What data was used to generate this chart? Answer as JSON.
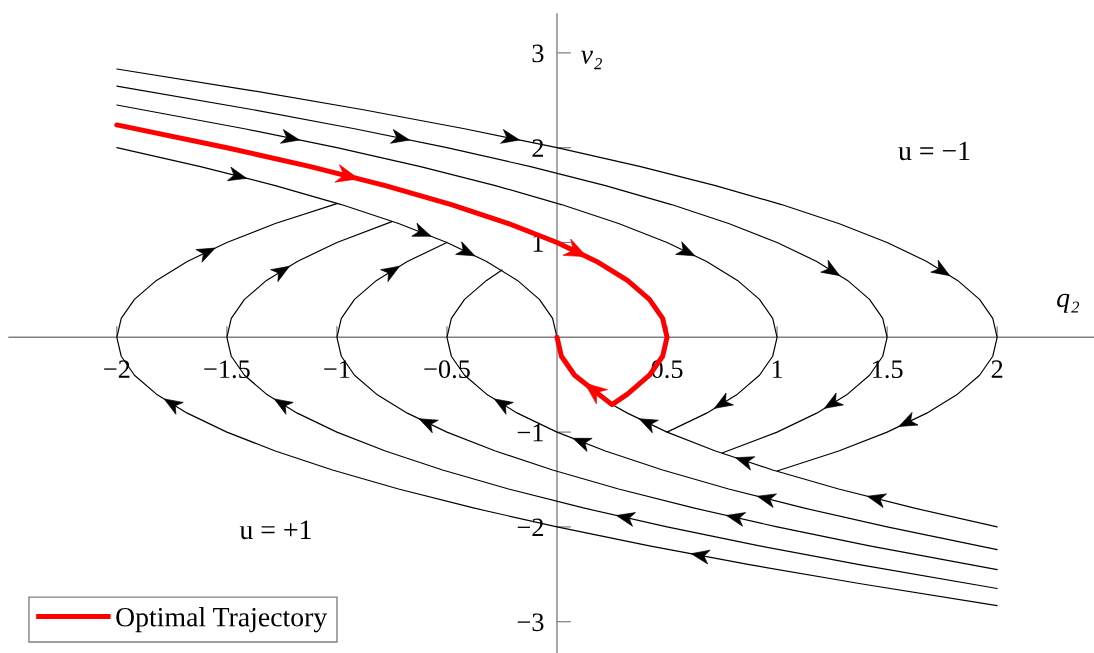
{
  "chart_data": {
    "type": "line",
    "xlabel": "q₂",
    "ylabel": "v₂",
    "xlim": [
      -2.49,
      2.44
    ],
    "ylim": [
      -3.33,
      3.41
    ],
    "xticks": [
      {
        "value": -2,
        "label": "−2"
      },
      {
        "value": -1.5,
        "label": "−1.5"
      },
      {
        "value": -1,
        "label": "−1"
      },
      {
        "value": -0.5,
        "label": "−0.5"
      },
      0.5,
      1,
      1.5,
      2
    ],
    "yticks": [
      {
        "value": -3,
        "label": "−3"
      },
      {
        "value": -2,
        "label": "−2"
      },
      {
        "value": -1,
        "label": "−1"
      },
      1,
      2,
      3
    ],
    "grid": false,
    "legend": "bottom left",
    "line_style": "solid",
    "annotations": [
      "u = −1",
      "u = +1"
    ],
    "series": [
      {
        "color": "#000000",
        "x": [
          -2.0,
          -1.38,
          -0.88,
          -0.42,
          0.0,
          0.38,
          0.72,
          1.02,
          1.28,
          1.5,
          1.68,
          1.82,
          1.92,
          1.98,
          2.0,
          1.98,
          1.92,
          1.82,
          1.68,
          1.5,
          1.28,
          1.0
        ],
        "values": [
          2.83,
          2.6,
          2.4,
          2.2,
          2.0,
          1.8,
          1.6,
          1.4,
          1.2,
          1.0,
          0.8,
          0.6,
          0.4,
          0.2,
          0,
          -0.2,
          -0.4,
          -0.6,
          -0.8,
          -1.0,
          -1.2,
          -1.41
        ]
      },
      {
        "color": "#000000",
        "x": [
          -2.0,
          -1.38,
          -0.92,
          -0.5,
          -0.12,
          0.22,
          0.52,
          0.78,
          1.0,
          1.18,
          1.32,
          1.42,
          1.48,
          1.5,
          1.48,
          1.42,
          1.32,
          1.18,
          1.0,
          0.75
        ],
        "values": [
          2.65,
          2.4,
          2.2,
          2.0,
          1.8,
          1.6,
          1.4,
          1.2,
          1.0,
          0.8,
          0.6,
          0.4,
          0.2,
          0,
          -0.2,
          -0.4,
          -0.6,
          -0.8,
          -1.0,
          -1.22
        ]
      },
      {
        "color": "#000000",
        "x": [
          -2.0,
          -1.42,
          -1.0,
          -0.62,
          -0.28,
          0.02,
          0.28,
          0.5,
          0.68,
          0.82,
          0.92,
          0.98,
          1.0,
          0.98,
          0.92,
          0.82,
          0.68,
          0.5
        ],
        "values": [
          2.45,
          2.2,
          2.0,
          1.8,
          1.6,
          1.4,
          1.2,
          1.0,
          0.8,
          0.6,
          0.4,
          0.2,
          0,
          -0.2,
          -0.4,
          -0.6,
          -0.8,
          -1.0
        ]
      },
      {
        "color": "#000000",
        "x": [
          -2.0,
          -1.62,
          -1.28,
          -0.98,
          -0.72,
          -0.5,
          -0.32,
          -0.18,
          -0.08,
          -0.02,
          0.0
        ],
        "values": [
          2.0,
          1.8,
          1.6,
          1.4,
          1.2,
          1.0,
          0.8,
          0.6,
          0.4,
          0.2,
          0
        ]
      },
      {
        "color": "#000000",
        "x": [
          2.0,
          1.62,
          1.28,
          0.98,
          0.72,
          0.5,
          0.32,
          0.25
        ],
        "values": [
          -2.0,
          -1.8,
          -1.6,
          -1.4,
          -1.2,
          -1.0,
          -0.8,
          -0.71
        ]
      },
      {
        "color": "#000000",
        "x": [
          2.0,
          1.5,
          1.12,
          0.78,
          0.48,
          0.22,
          0.0,
          -0.18,
          -0.32,
          -0.42,
          -0.48,
          -0.5,
          -0.48,
          -0.42,
          -0.32,
          -0.25
        ],
        "values": [
          -2.24,
          -2.0,
          -1.8,
          -1.6,
          -1.4,
          -1.2,
          -1.0,
          -0.8,
          -0.6,
          -0.4,
          -0.2,
          0,
          0.2,
          0.4,
          0.6,
          0.71
        ]
      },
      {
        "color": "#000000",
        "x": [
          2.0,
          1.42,
          1.0,
          0.62,
          0.28,
          -0.02,
          -0.28,
          -0.5,
          -0.68,
          -0.82,
          -0.92,
          -0.98,
          -1.0,
          -0.98,
          -0.92,
          -0.82,
          -0.68,
          -0.5
        ],
        "values": [
          -2.45,
          -2.2,
          -2.0,
          -1.8,
          -1.6,
          -1.4,
          -1.2,
          -1.0,
          -0.8,
          -0.6,
          -0.4,
          -0.2,
          0,
          0.2,
          0.4,
          0.6,
          0.8,
          1.0
        ]
      },
      {
        "color": "#000000",
        "x": [
          2.0,
          1.38,
          0.92,
          0.5,
          0.12,
          -0.22,
          -0.52,
          -0.78,
          -1.0,
          -1.18,
          -1.32,
          -1.42,
          -1.48,
          -1.5,
          -1.48,
          -1.42,
          -1.32,
          -1.18,
          -1.0,
          -0.75
        ],
        "values": [
          -2.65,
          -2.4,
          -2.2,
          -2.0,
          -1.8,
          -1.6,
          -1.4,
          -1.2,
          -1.0,
          -0.8,
          -0.6,
          -0.4,
          -0.2,
          0,
          0.2,
          0.4,
          0.6,
          0.8,
          1.0,
          1.22
        ]
      },
      {
        "color": "#000000",
        "x": [
          2.0,
          1.38,
          0.88,
          0.42,
          0.0,
          -0.38,
          -0.72,
          -1.02,
          -1.28,
          -1.5,
          -1.68,
          -1.82,
          -1.92,
          -1.98,
          -2.0,
          -1.98,
          -1.92,
          -1.82,
          -1.68,
          -1.5,
          -1.28,
          -1.0
        ],
        "values": [
          -2.83,
          -2.6,
          -2.4,
          -2.2,
          -2.0,
          -1.8,
          -1.6,
          -1.4,
          -1.2,
          -1.0,
          -0.8,
          -0.6,
          -0.4,
          -0.2,
          0,
          0.2,
          0.4,
          0.6,
          0.8,
          1.0,
          1.2,
          1.41
        ]
      },
      {
        "name": "Optimal Trajectory",
        "color": "#ff0000",
        "x": [
          -2.0,
          -1.5,
          -1.12,
          -0.78,
          -0.48,
          -0.22,
          0.0,
          0.18,
          0.32,
          0.42,
          0.48,
          0.5,
          0.48,
          0.42,
          0.32,
          0.25,
          0.08,
          0.02,
          0.0
        ],
        "values": [
          2.24,
          2.0,
          1.8,
          1.6,
          1.4,
          1.2,
          1.0,
          0.8,
          0.6,
          0.4,
          0.2,
          0,
          -0.2,
          -0.4,
          -0.6,
          -0.71,
          -0.4,
          -0.2,
          0
        ]
      }
    ]
  }
}
